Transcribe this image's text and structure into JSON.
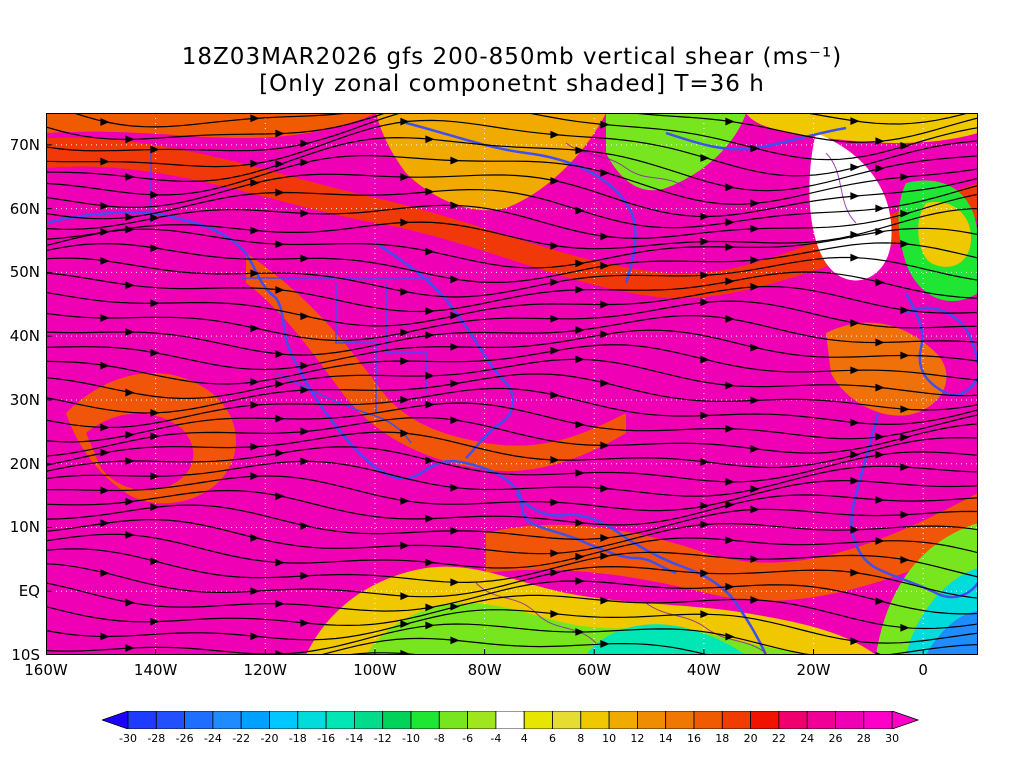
{
  "title": {
    "line1": "18Z03MAR2026 gfs 200-850mb vertical shear (ms⁻¹)",
    "line2": "[Only zonal componetnt shaded] T=36 h"
  },
  "map": {
    "lat_labels": [
      "70N",
      "60N",
      "50N",
      "40N",
      "30N",
      "20N",
      "10N",
      "EQ",
      "10S"
    ],
    "lat_values": [
      70,
      60,
      50,
      40,
      30,
      20,
      10,
      0,
      -10
    ],
    "lon_labels": [
      "160W",
      "140W",
      "120W",
      "100W",
      "80W",
      "60W",
      "40W",
      "20W",
      "0"
    ],
    "lon_values": [
      -160,
      -140,
      -120,
      -100,
      -80,
      -60,
      -40,
      -20,
      0
    ],
    "lon_range": [
      -160,
      10
    ],
    "lat_range": [
      -10,
      75
    ],
    "grid": true,
    "coastline_color": "#3f4ff0",
    "streamline_color": "#000000",
    "contour_color": "#8a1aa8"
  },
  "colorbar": {
    "tick_labels": [
      "-30",
      "-28",
      "-26",
      "-24",
      "-22",
      "-20",
      "-18",
      "-16",
      "-14",
      "-12",
      "-10",
      "-8",
      "-6",
      "-4",
      "4",
      "6",
      "8",
      "10",
      "12",
      "14",
      "16",
      "18",
      "20",
      "22",
      "24",
      "26",
      "28",
      "30"
    ],
    "colors": [
      "#1e3cff",
      "#2250ff",
      "#1e6eff",
      "#1e8cff",
      "#00a0ff",
      "#00c8ff",
      "#00dcdc",
      "#00e6b4",
      "#00dc8c",
      "#00d25a",
      "#1ee632",
      "#78e61e",
      "#a0e61e",
      "#ffffff",
      "#e6e600",
      "#e6dc32",
      "#f0c800",
      "#f0aa00",
      "#f08c00",
      "#f07800",
      "#f05a00",
      "#f03c00",
      "#f01400",
      "#f0006e",
      "#f00096",
      "#f000b4",
      "#ff00c8"
    ],
    "low_arrow_color": "#1e00ff",
    "high_arrow_color": "#ff00c8"
  }
}
